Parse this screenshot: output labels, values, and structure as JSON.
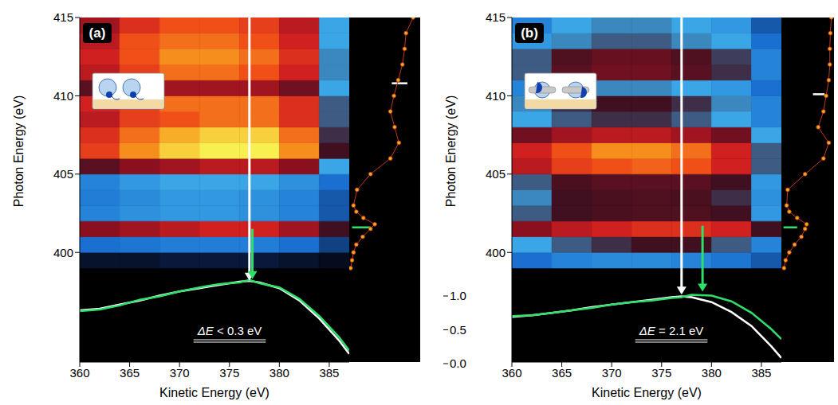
{
  "chart_data": [
    {
      "type": "heatmap",
      "label": "(a)",
      "x_label": "Kinetic Energy (eV)",
      "y_label": "Photon Energy (eV)",
      "xlim": [
        360,
        387
      ],
      "ylim": [
        393,
        415
      ],
      "xticks": [
        360,
        365,
        370,
        375,
        380,
        385
      ],
      "yticks": [
        400,
        405,
        410,
        415
      ],
      "x_bins": [
        360,
        364,
        368,
        372,
        376,
        380,
        384,
        387
      ],
      "y_bins": [
        399,
        400,
        401,
        402,
        403,
        404,
        405,
        406,
        407,
        408,
        409,
        410,
        411,
        412,
        413,
        414,
        415
      ],
      "cells": [
        [
          0.03,
          0.03,
          0.04,
          0.04,
          0.04,
          0.03,
          0.02
        ],
        [
          0.12,
          0.13,
          0.14,
          0.14,
          0.14,
          0.12,
          0.08
        ],
        [
          0.45,
          0.5,
          0.55,
          0.6,
          0.6,
          0.5,
          0.3
        ],
        [
          0.15,
          0.17,
          0.18,
          0.18,
          0.17,
          0.15,
          0.1
        ],
        [
          0.14,
          0.16,
          0.18,
          0.18,
          0.17,
          0.15,
          0.1
        ],
        [
          0.15,
          0.18,
          0.2,
          0.2,
          0.2,
          0.17,
          0.12
        ],
        [
          0.35,
          0.45,
          0.5,
          0.55,
          0.55,
          0.45,
          0.2
        ],
        [
          0.7,
          0.85,
          0.95,
          1.0,
          1.0,
          0.85,
          0.3
        ],
        [
          0.65,
          0.8,
          0.9,
          0.95,
          0.95,
          0.8,
          0.28
        ],
        [
          0.55,
          0.7,
          0.75,
          0.8,
          0.8,
          0.65,
          0.25
        ],
        [
          0.6,
          0.7,
          0.8,
          0.8,
          0.8,
          0.65,
          0.25
        ],
        [
          0.35,
          0.45,
          0.5,
          0.5,
          0.5,
          0.4,
          0.2
        ],
        [
          0.55,
          0.7,
          0.8,
          0.8,
          0.75,
          0.6,
          0.22
        ],
        [
          0.6,
          0.75,
          0.85,
          0.85,
          0.8,
          0.65,
          0.22
        ],
        [
          0.55,
          0.75,
          0.8,
          0.8,
          0.75,
          0.6,
          0.2
        ],
        [
          0.5,
          0.65,
          0.75,
          0.75,
          0.7,
          0.55,
          0.2
        ]
      ],
      "annotation": "ΔE < 0.3 eV",
      "arrows": [
        {
          "x": 377,
          "y": [
            415,
            398.2
          ],
          "color": "#ffffff"
        },
        {
          "x": 377.3,
          "y": [
            401.5,
            398.3
          ],
          "color": "#2ee06a"
        }
      ],
      "spectrum": {
        "type": "line",
        "marker": "o",
        "color": "#f5a623",
        "xlim": [
          0,
          1
        ],
        "y": [
          399,
          399.5,
          400,
          400.5,
          401,
          401.5,
          401.8,
          402.2,
          402.6,
          403,
          404,
          405,
          406,
          407,
          408,
          409,
          410,
          411,
          412,
          413,
          414,
          415
        ],
        "values": [
          0.02,
          0.04,
          0.06,
          0.1,
          0.19,
          0.3,
          0.36,
          0.2,
          0.1,
          0.06,
          0.11,
          0.3,
          0.58,
          0.7,
          0.64,
          0.58,
          0.63,
          0.69,
          0.75,
          0.78,
          0.8,
          0.9
        ],
        "marks": [
          {
            "y": 410.8,
            "color": "#ffffff"
          },
          {
            "y": 401.6,
            "color": "#2ee06a"
          }
        ]
      },
      "profile": {
        "type": "line",
        "ylim": [
          0,
          4.2
        ],
        "x": [
          360,
          362,
          364,
          366,
          368,
          370,
          372,
          374,
          376,
          377,
          378,
          380,
          382,
          384,
          386,
          387
        ],
        "series": [
          {
            "color": "#ffffff",
            "values": [
              0.63,
              0.65,
              0.7,
              0.75,
              0.81,
              0.86,
              0.9,
              0.94,
              0.98,
              0.99,
              0.97,
              0.9,
              0.75,
              0.53,
              0.26,
              0.1
            ]
          },
          {
            "color": "#2ee06a",
            "values": [
              0.62,
              0.64,
              0.69,
              0.76,
              0.8,
              0.86,
              0.91,
              0.95,
              0.97,
              1.0,
              0.96,
              0.91,
              0.77,
              0.56,
              0.3,
              0.14
            ]
          }
        ]
      }
    },
    {
      "type": "heatmap",
      "label": "(b)",
      "x_label": "Kinetic Energy (eV)",
      "y_label": "Photon Energy (eV)",
      "xlim": [
        360,
        387
      ],
      "ylim": [
        393,
        415
      ],
      "xticks": [
        360,
        365,
        370,
        375,
        380,
        385
      ],
      "yticks": [
        400,
        405,
        410,
        415
      ],
      "x_bins": [
        360,
        364,
        368,
        372,
        376,
        380,
        384,
        387
      ],
      "y_bins": [
        399,
        400,
        401,
        402,
        403,
        404,
        405,
        406,
        407,
        408,
        409,
        410,
        411,
        412,
        413,
        414,
        415
      ],
      "cells": [
        [
          0.12,
          0.15,
          0.16,
          0.16,
          0.15,
          0.13,
          0.1
        ],
        [
          0.2,
          0.25,
          0.28,
          0.3,
          0.3,
          0.25,
          0.15
        ],
        [
          0.45,
          0.55,
          0.6,
          0.65,
          0.65,
          0.6,
          0.3
        ],
        [
          0.25,
          0.3,
          0.32,
          0.33,
          0.33,
          0.3,
          0.18
        ],
        [
          0.22,
          0.3,
          0.32,
          0.33,
          0.32,
          0.28,
          0.17
        ],
        [
          0.25,
          0.32,
          0.35,
          0.35,
          0.35,
          0.3,
          0.18
        ],
        [
          0.55,
          0.7,
          0.75,
          0.78,
          0.75,
          0.6,
          0.25
        ],
        [
          0.6,
          0.75,
          0.85,
          0.85,
          0.8,
          0.6,
          0.25
        ],
        [
          0.4,
          0.5,
          0.55,
          0.55,
          0.5,
          0.4,
          0.2
        ],
        [
          0.2,
          0.25,
          0.28,
          0.28,
          0.25,
          0.2,
          0.15
        ],
        [
          0.22,
          0.28,
          0.3,
          0.3,
          0.28,
          0.22,
          0.15
        ],
        [
          0.15,
          0.2,
          0.22,
          0.22,
          0.2,
          0.18,
          0.12
        ],
        [
          0.25,
          0.35,
          0.4,
          0.4,
          0.35,
          0.28,
          0.15
        ],
        [
          0.25,
          0.33,
          0.38,
          0.38,
          0.33,
          0.27,
          0.15
        ],
        [
          0.18,
          0.22,
          0.25,
          0.25,
          0.22,
          0.2,
          0.12
        ],
        [
          0.15,
          0.2,
          0.22,
          0.22,
          0.2,
          0.18,
          0.1
        ]
      ],
      "annotation": "ΔE = 2.1 eV",
      "arrows": [
        {
          "x": 377,
          "y": [
            415,
            397.3
          ],
          "color": "#ffffff"
        },
        {
          "x": 379.1,
          "y": [
            401.7,
            397.5
          ],
          "color": "#2ee06a"
        }
      ],
      "spectrum": {
        "type": "line",
        "marker": "o",
        "color": "#f5a623",
        "xlim": [
          0,
          1
        ],
        "y": [
          399,
          399.5,
          400,
          400.5,
          401,
          401.5,
          401.8,
          402.2,
          402.6,
          403,
          404,
          405,
          406,
          407,
          408,
          409,
          410,
          411,
          412,
          413,
          414,
          415
        ],
        "values": [
          0.05,
          0.08,
          0.15,
          0.25,
          0.38,
          0.45,
          0.48,
          0.3,
          0.15,
          0.1,
          0.12,
          0.45,
          0.8,
          0.9,
          0.7,
          0.8,
          0.85,
          0.9,
          0.92,
          0.92,
          0.93,
          0.95
        ],
        "marks": [
          {
            "y": 410.1,
            "color": "#ffffff"
          },
          {
            "y": 401.6,
            "color": "#2ee06a"
          }
        ]
      },
      "profile": {
        "type": "line",
        "ylim": [
          0,
          4.2
        ],
        "x": [
          360,
          362,
          364,
          366,
          368,
          370,
          372,
          374,
          376,
          377,
          378,
          380,
          382,
          384,
          386,
          387
        ],
        "series": [
          {
            "color": "#ffffff",
            "values": [
              0.55,
              0.57,
              0.6,
              0.63,
              0.67,
              0.7,
              0.73,
              0.76,
              0.79,
              0.8,
              0.79,
              0.73,
              0.61,
              0.44,
              0.19,
              0.05
            ]
          },
          {
            "color": "#2ee06a",
            "values": [
              0.56,
              0.57,
              0.6,
              0.63,
              0.66,
              0.7,
              0.73,
              0.75,
              0.78,
              0.79,
              0.82,
              0.81,
              0.74,
              0.6,
              0.4,
              0.28
            ]
          }
        ]
      }
    }
  ],
  "colorbar": {
    "range": [
      0,
      1
    ],
    "ticks": [
      {
        "value": 0,
        "label": "0.0"
      },
      {
        "value": 0.5,
        "label": "0.5"
      },
      {
        "value": 1,
        "label": "1.0"
      }
    ]
  }
}
